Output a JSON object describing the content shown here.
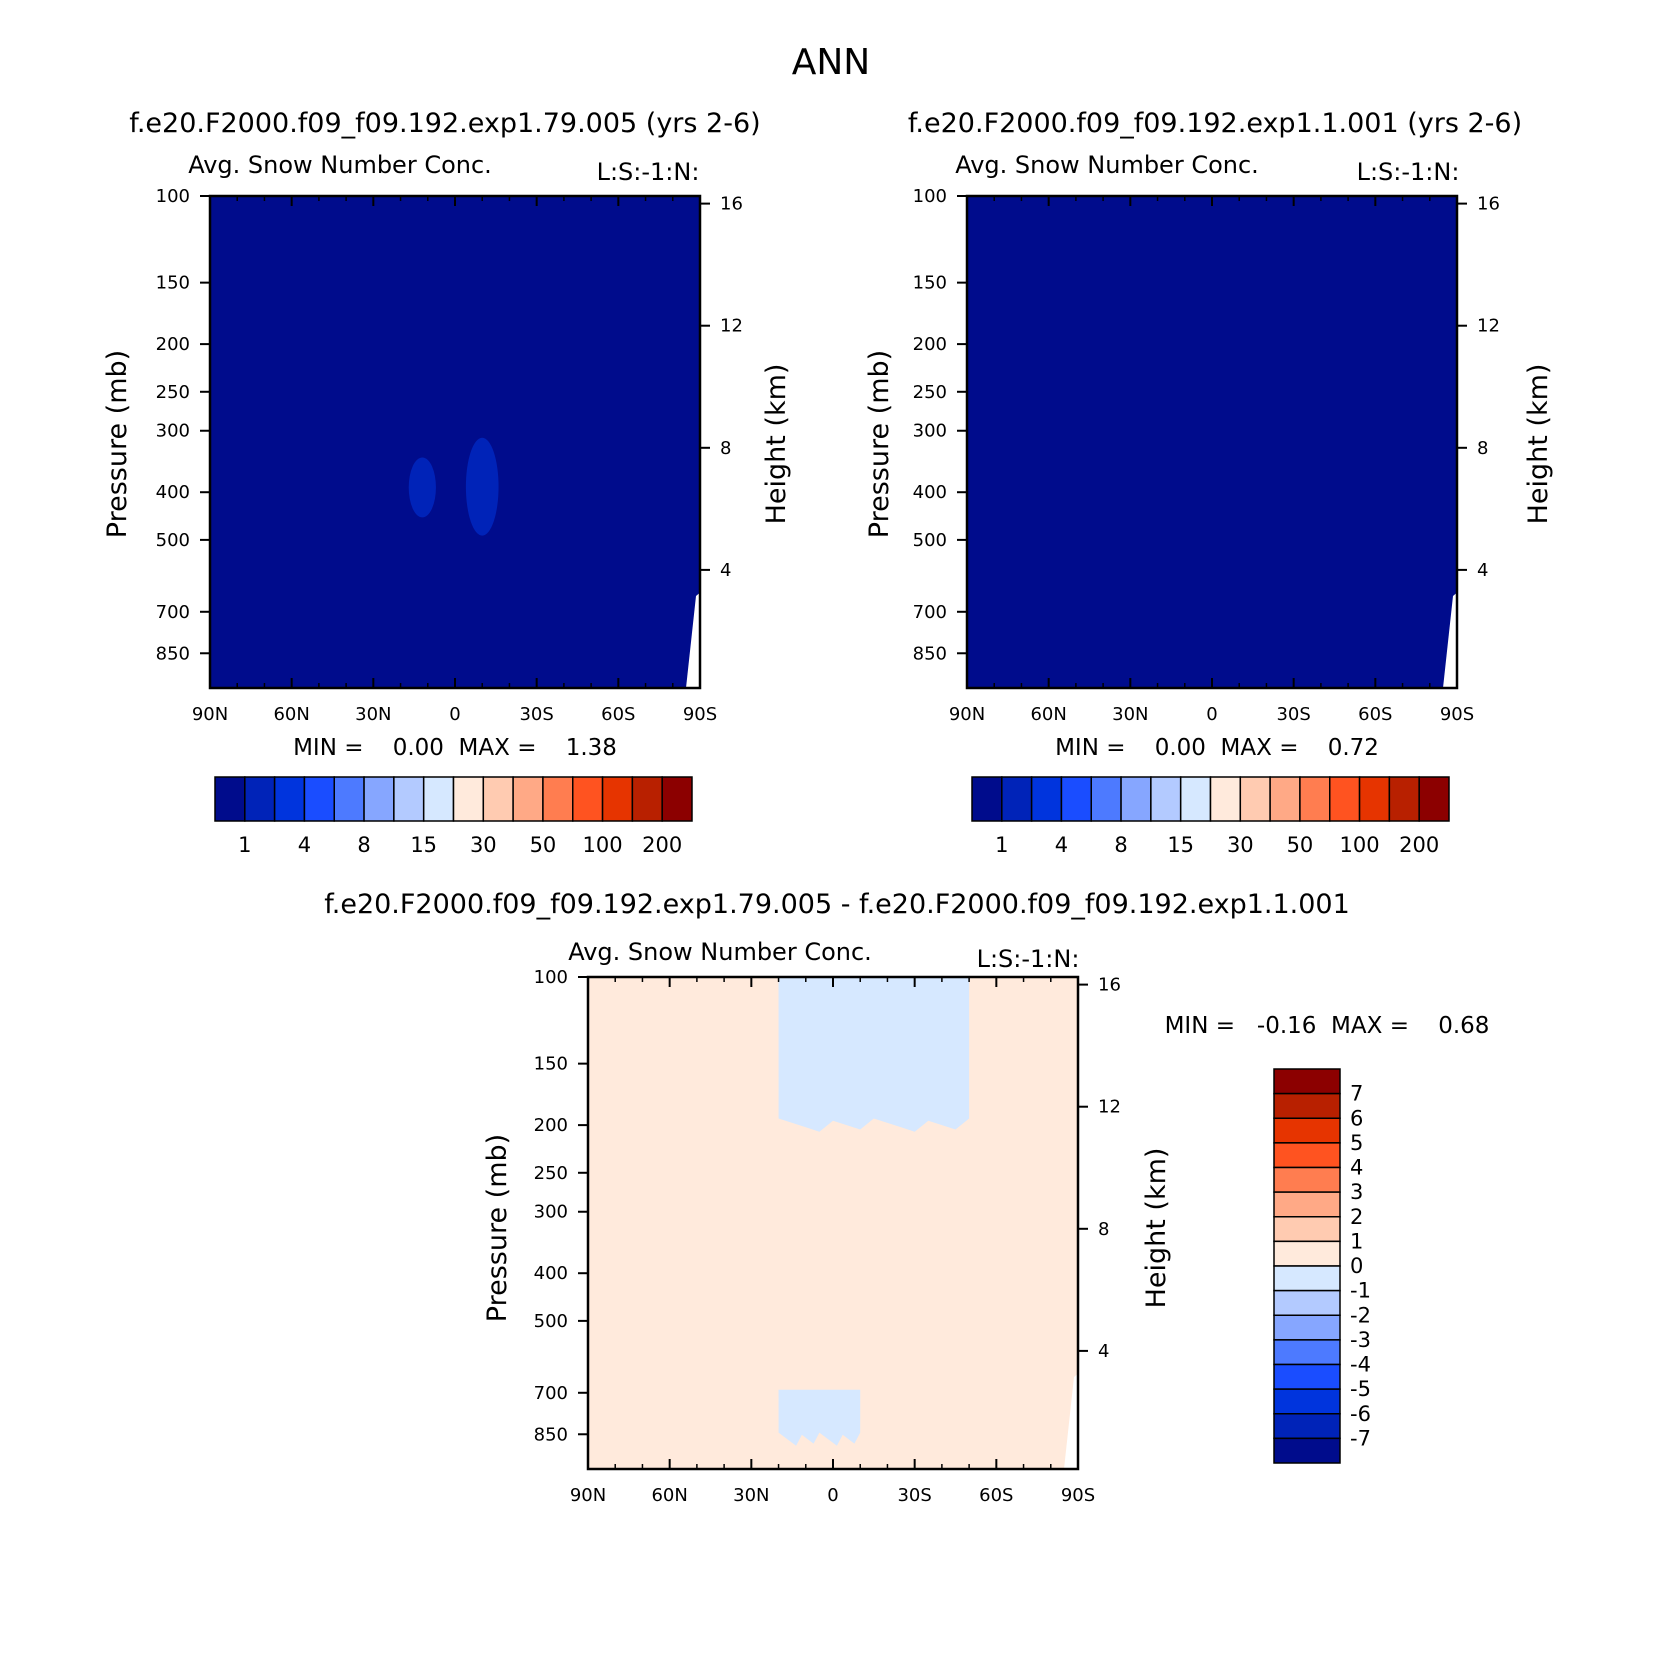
{
  "figure": {
    "title": "ANN"
  },
  "colors": {
    "abs_palette": [
      "#000c8c",
      "#0023b8",
      "#0034dd",
      "#1a4dff",
      "#4d7aff",
      "#86a6ff",
      "#b3caff",
      "#d6e8ff",
      "#ffeadc",
      "#ffcbb1",
      "#ffa986",
      "#ff7d50",
      "#ff5320",
      "#e63400",
      "#b82000",
      "#8c0000"
    ],
    "diff_palette": [
      "#000c8c",
      "#0023b8",
      "#0034dd",
      "#1a4dff",
      "#4d7aff",
      "#86a6ff",
      "#b3caff",
      "#d6e8ff",
      "#ffeadc",
      "#ffcbb1",
      "#ffa986",
      "#ff7d50",
      "#ff5320",
      "#e63400",
      "#b82000",
      "#8c0000"
    ]
  },
  "chart_data": [
    {
      "type": "heatmap",
      "title": "f.e20.F2000.f09_f09.192.exp1.79.005 (yrs 2-6)",
      "subtitle": "Avg. Snow Number Conc.",
      "subtitle_right": "L:S:-1:N:",
      "xlabel": "",
      "ylabel": "Pressure (mb)",
      "ylabel_right": "Height (km)",
      "x_ticks": [
        "90N",
        "60N",
        "30N",
        "0",
        "30S",
        "60S",
        "90S"
      ],
      "x_tick_values": [
        90,
        60,
        30,
        0,
        -30,
        -60,
        -90
      ],
      "xlim": [
        90,
        -90
      ],
      "y_ticks": [
        "100",
        "150",
        "200",
        "250",
        "300",
        "400",
        "500",
        "700",
        "850"
      ],
      "y_tick_values": [
        100,
        150,
        200,
        250,
        300,
        400,
        500,
        700,
        850
      ],
      "ylim": [
        100,
        1000
      ],
      "y_scale": "log",
      "y_right_ticks": [
        "16",
        "12",
        "8",
        "4"
      ],
      "y_right_values": [
        16,
        12,
        8,
        4
      ],
      "min_max_text": "MIN =    0.00  MAX =    1.38",
      "background_level": 0,
      "features": [
        {
          "level": 1,
          "lat": -10,
          "p": 400,
          "dlat": 6,
          "dp_top": 310,
          "dp_bot": 490
        },
        {
          "level": 1,
          "lat": 12,
          "p": 400,
          "dlat": 5,
          "dp_top": 340,
          "dp_bot": 450
        }
      ],
      "colorbar": {
        "orientation": "horizontal",
        "labels": [
          "1",
          "4",
          "8",
          "15",
          "30",
          "50",
          "100",
          "200"
        ],
        "boxes": 16
      }
    },
    {
      "type": "heatmap",
      "title": "f.e20.F2000.f09_f09.192.exp1.1.001 (yrs 2-6)",
      "subtitle": "Avg. Snow Number Conc.",
      "subtitle_right": "L:S:-1:N:",
      "xlabel": "",
      "ylabel": "Pressure (mb)",
      "ylabel_right": "Height (km)",
      "x_ticks": [
        "90N",
        "60N",
        "30N",
        "0",
        "30S",
        "60S",
        "90S"
      ],
      "x_tick_values": [
        90,
        60,
        30,
        0,
        -30,
        -60,
        -90
      ],
      "xlim": [
        90,
        -90
      ],
      "y_ticks": [
        "100",
        "150",
        "200",
        "250",
        "300",
        "400",
        "500",
        "700",
        "850"
      ],
      "y_tick_values": [
        100,
        150,
        200,
        250,
        300,
        400,
        500,
        700,
        850
      ],
      "ylim": [
        100,
        1000
      ],
      "y_scale": "log",
      "y_right_ticks": [
        "16",
        "12",
        "8",
        "4"
      ],
      "y_right_values": [
        16,
        12,
        8,
        4
      ],
      "min_max_text": "MIN =    0.00  MAX =    0.72",
      "background_level": 0,
      "features": [],
      "colorbar": {
        "orientation": "horizontal",
        "labels": [
          "1",
          "4",
          "8",
          "15",
          "30",
          "50",
          "100",
          "200"
        ],
        "boxes": 16
      }
    },
    {
      "type": "heatmap",
      "title": "f.e20.F2000.f09_f09.192.exp1.79.005 - f.e20.F2000.f09_f09.192.exp1.1.001",
      "subtitle": "Avg. Snow Number Conc.",
      "subtitle_right": "L:S:-1:N:",
      "xlabel": "",
      "ylabel": "Pressure (mb)",
      "ylabel_right": "Height (km)",
      "x_ticks": [
        "90N",
        "60N",
        "30N",
        "0",
        "30S",
        "60S",
        "90S"
      ],
      "x_tick_values": [
        90,
        60,
        30,
        0,
        -30,
        -60,
        -90
      ],
      "xlim": [
        90,
        -90
      ],
      "y_ticks": [
        "100",
        "150",
        "200",
        "250",
        "300",
        "400",
        "500",
        "700",
        "850"
      ],
      "y_tick_values": [
        100,
        150,
        200,
        250,
        300,
        400,
        500,
        700,
        850
      ],
      "ylim": [
        100,
        1000
      ],
      "y_scale": "log",
      "y_right_ticks": [
        "16",
        "12",
        "8",
        "4"
      ],
      "y_right_values": [
        16,
        12,
        8,
        4
      ],
      "min_max_text": "MIN =   -0.16  MAX =    0.68",
      "background_level": 8,
      "negative_regions": [
        {
          "level": 7,
          "lat_from": 20,
          "lat_to": -50,
          "p_top": 100,
          "p_bot": 200
        },
        {
          "level": 7,
          "lat_from": -10,
          "lat_to": 20,
          "p_top": 690,
          "p_bot": 870
        }
      ],
      "colorbar": {
        "orientation": "vertical",
        "labels": [
          "7",
          "6",
          "5",
          "4",
          "3",
          "2",
          "1",
          "0",
          "-1",
          "-2",
          "-3",
          "-4",
          "-5",
          "-6",
          "-7"
        ],
        "boxes": 16
      }
    }
  ]
}
